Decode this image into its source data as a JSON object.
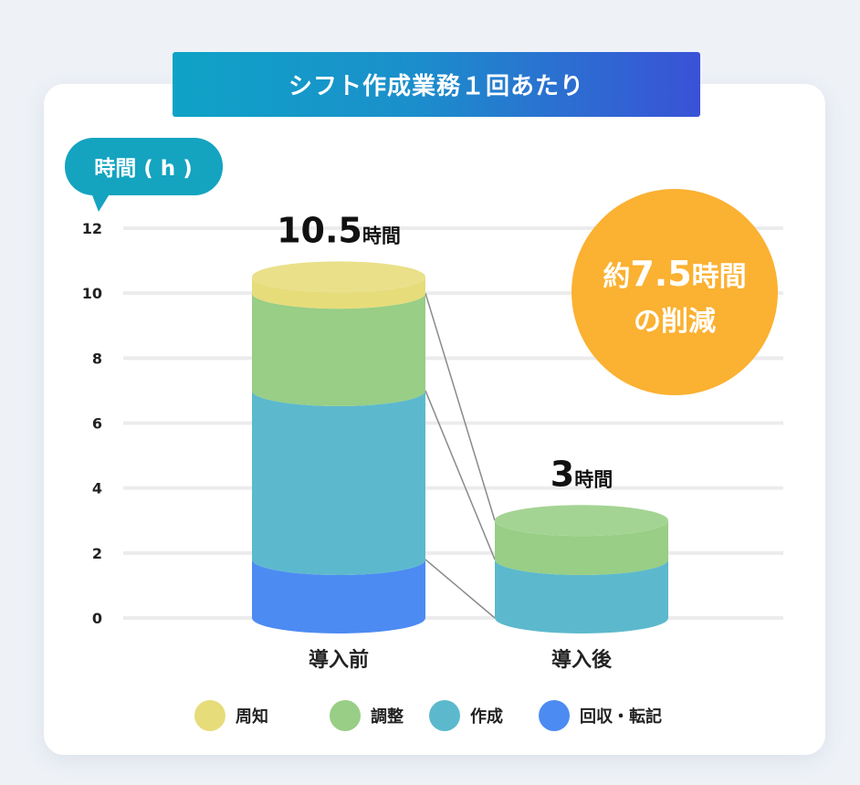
{
  "banner": {
    "title": "シフト作成業務１回あたり"
  },
  "badge": {
    "prefix": "約",
    "number": "7.5",
    "unit": "時間",
    "line2": "の削減"
  },
  "colors": {
    "周知": "#e7dc7a",
    "調整": "#98ce85",
    "作成": "#5cb9cd",
    "回収・転記": "#4c8bf2",
    "badge": "#fbb131",
    "unit_pill": "#14a4c0"
  },
  "chart_data": {
    "type": "bar",
    "stacked": true,
    "ylabel": "時間 ( h )",
    "ylim": [
      0,
      12
    ],
    "yticks": [
      0,
      2,
      4,
      6,
      8,
      10,
      12
    ],
    "grid": true,
    "legend_position": "bottom",
    "categories": [
      "導入前",
      "導入後"
    ],
    "totals": [
      {
        "value": "10.5",
        "unit": "時間"
      },
      {
        "value": "3",
        "unit": "時間"
      }
    ],
    "series": [
      {
        "name": "回収・転記",
        "values": [
          1.8,
          0
        ]
      },
      {
        "name": "作成",
        "values": [
          5.2,
          1.8
        ]
      },
      {
        "name": "調整",
        "values": [
          3.0,
          1.2
        ]
      },
      {
        "name": "周知",
        "values": [
          0.5,
          0
        ]
      }
    ]
  }
}
